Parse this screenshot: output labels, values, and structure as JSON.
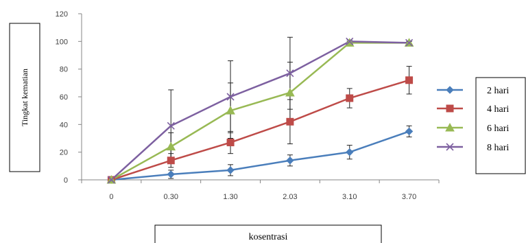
{
  "chart_data": {
    "type": "line",
    "categories": [
      "0",
      "0.30",
      "1.30",
      "2.03",
      "3.10",
      "3.70"
    ],
    "xlabel": "kosentrasi",
    "ylabel": "Tingkat kematian",
    "ylim": [
      0,
      120
    ],
    "yticks": [
      "0",
      "20",
      "40",
      "60",
      "80",
      "100",
      "120"
    ],
    "grid": false,
    "legend_position": "right",
    "series": [
      {
        "name": "2 hari",
        "color": "#4a7ebb",
        "marker": "diamond",
        "values": [
          0,
          4,
          7,
          14,
          20,
          35
        ],
        "errors": [
          0,
          3,
          4,
          4,
          5,
          4
        ]
      },
      {
        "name": "4 hari",
        "color": "#be4b48",
        "marker": "square",
        "values": [
          0,
          14,
          27,
          42,
          59,
          72
        ],
        "errors": [
          0,
          5,
          8,
          16,
          7,
          10
        ]
      },
      {
        "name": "6 hari",
        "color": "#98b954",
        "marker": "triangle",
        "values": [
          0,
          24,
          50,
          63,
          99,
          99
        ],
        "errors": [
          0,
          10,
          20,
          22,
          1,
          1
        ]
      },
      {
        "name": "8 hari",
        "color": "#7d60a0",
        "marker": "x",
        "values": [
          0,
          39,
          60,
          77,
          100,
          99
        ],
        "errors": [
          0,
          26,
          26,
          26,
          1,
          1
        ]
      }
    ]
  }
}
